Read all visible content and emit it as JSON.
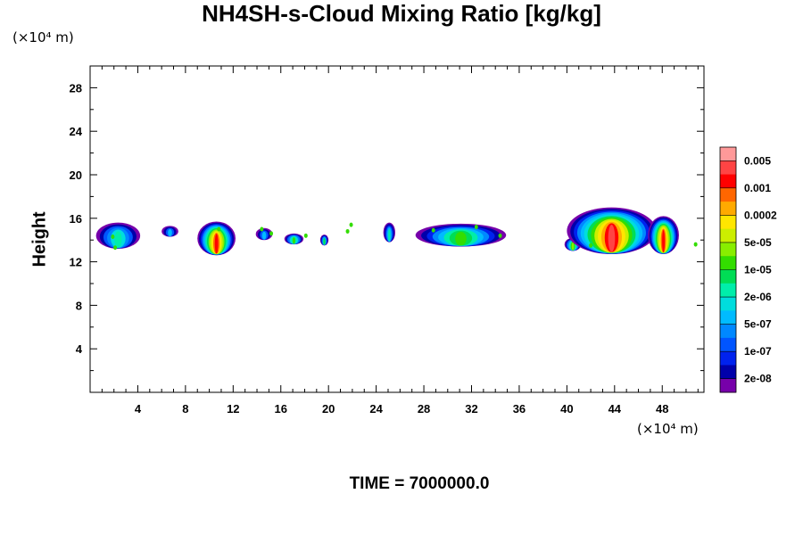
{
  "chart_data": {
    "type": "heatmap",
    "title": "NH4SH-s-Cloud Mixing Ratio [kg/kg]",
    "ylabel": "Height",
    "xlabel": "",
    "y_unit": "(×10⁴ m)",
    "x_unit": "(×10⁴ m)",
    "footer": "TIME = 7000000.0",
    "xlim": [
      0,
      51.5
    ],
    "ylim": [
      0,
      30
    ],
    "x_ticks": [
      4,
      8,
      12,
      16,
      20,
      24,
      28,
      32,
      36,
      40,
      44,
      48
    ],
    "y_ticks": [
      4,
      8,
      12,
      16,
      20,
      24,
      28
    ],
    "colorbar": {
      "labels": [
        "0.005",
        "0.001",
        "0.0002",
        "5e-05",
        "1e-05",
        "2e-06",
        "5e-07",
        "1e-07",
        "2e-08"
      ],
      "colors": [
        "#ff9999",
        "#ff4444",
        "#ff0000",
        "#ff6600",
        "#ffaa00",
        "#ffe600",
        "#ccee00",
        "#88ee00",
        "#33dd00",
        "#00dd55",
        "#00eeaa",
        "#00dddd",
        "#00bbff",
        "#0088ff",
        "#0055ff",
        "#0022ee",
        "#0000aa",
        "#7700aa"
      ]
    },
    "cloud_cells": [
      {
        "x0": 0.5,
        "x1": 4.2,
        "ytop": 15.6,
        "ybase": 13.2,
        "peak": 0.42
      },
      {
        "x0": 6.0,
        "x1": 7.4,
        "ytop": 15.3,
        "ybase": 14.3,
        "peak": 0.32
      },
      {
        "x0": 9.0,
        "x1": 12.2,
        "ytop": 15.7,
        "ybase": 12.6,
        "peak": 0.88
      },
      {
        "x0": 13.9,
        "x1": 15.3,
        "ytop": 15.1,
        "ybase": 14.0,
        "peak": 0.3
      },
      {
        "x0": 16.3,
        "x1": 17.9,
        "ytop": 14.6,
        "ybase": 13.6,
        "peak": 0.5
      },
      {
        "x0": 19.3,
        "x1": 20.0,
        "ytop": 14.5,
        "ybase": 13.5,
        "peak": 0.45
      },
      {
        "x0": 24.6,
        "x1": 25.6,
        "ytop": 15.6,
        "ybase": 13.8,
        "peak": 0.4
      },
      {
        "x0": 27.3,
        "x1": 34.9,
        "ytop": 15.5,
        "ybase": 13.4,
        "peak": 0.55
      },
      {
        "x0": 39.8,
        "x1": 41.2,
        "ytop": 14.2,
        "ybase": 13.0,
        "peak": 0.6
      },
      {
        "x0": 40.0,
        "x1": 47.5,
        "ytop": 17.0,
        "ybase": 12.7,
        "peak": 0.92
      },
      {
        "x0": 46.8,
        "x1": 49.4,
        "ytop": 16.2,
        "ybase": 12.7,
        "peak": 0.88
      }
    ],
    "specks": [
      [
        1.9,
        14.3
      ],
      [
        2.1,
        13.3
      ],
      [
        14.4,
        15.0
      ],
      [
        15.2,
        14.6
      ],
      [
        18.1,
        14.4
      ],
      [
        21.6,
        14.8
      ],
      [
        21.9,
        15.4
      ],
      [
        32.4,
        15.2
      ],
      [
        34.4,
        14.4
      ],
      [
        42.0,
        13.5
      ],
      [
        50.8,
        13.6
      ],
      [
        10.8,
        15.0
      ],
      [
        28.8,
        14.9
      ]
    ]
  }
}
